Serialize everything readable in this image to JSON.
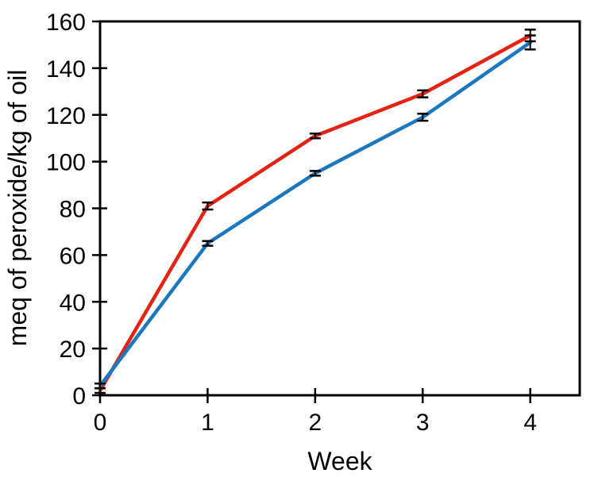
{
  "chart_data": {
    "type": "line",
    "title": "",
    "xlabel": "Week",
    "ylabel": "meq of peroxide/kg of oil",
    "x": [
      0,
      1,
      2,
      3,
      4
    ],
    "x_ticks": [
      0,
      1,
      2,
      3,
      4
    ],
    "y_ticks": [
      0,
      20,
      40,
      60,
      80,
      100,
      120,
      140,
      160
    ],
    "xlim": [
      0,
      4.46
    ],
    "ylim": [
      0,
      160
    ],
    "grid": false,
    "legend": "none",
    "plot_border": "full-box",
    "axis_color": "#000000",
    "error_bar_color": "#000000",
    "background_color": "#ffffff",
    "series": [
      {
        "name": "red",
        "color": "#e42313",
        "values": [
          2,
          81,
          111,
          129,
          154
        ],
        "error": [
          1,
          1.5,
          1,
          1.5,
          2.5
        ]
      },
      {
        "name": "blue",
        "color": "#1b78be",
        "values": [
          4,
          65,
          95,
          119,
          151
        ],
        "error": [
          1,
          1,
          1,
          1.5,
          3
        ]
      }
    ]
  }
}
